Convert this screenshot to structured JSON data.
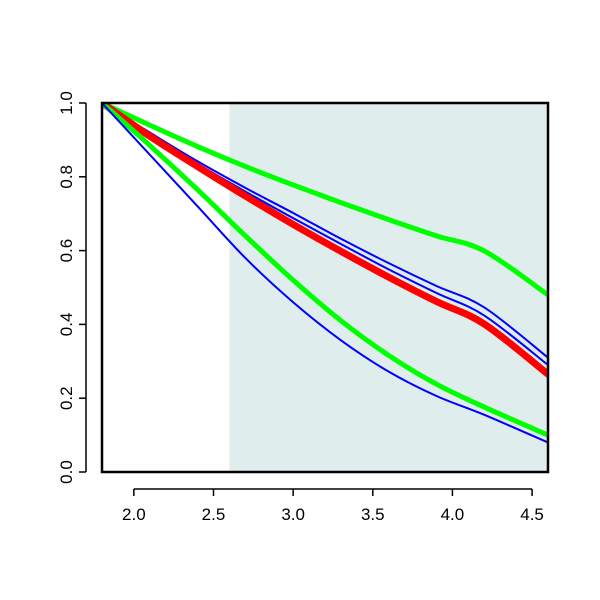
{
  "chart_data": {
    "type": "line",
    "title": "",
    "xlabel": "",
    "ylabel": "",
    "xlim": [
      1.8,
      4.6
    ],
    "ylim": [
      0.0,
      1.0
    ],
    "x_ticks": [
      "2.0",
      "2.5",
      "3.0",
      "3.5",
      "4.0",
      "4.5"
    ],
    "y_ticks": [
      "0.0",
      "0.2",
      "0.4",
      "0.6",
      "0.8",
      "1.0"
    ],
    "grid": false,
    "legend": "none",
    "shaded_region": {
      "x_start": 2.6,
      "x_end": 4.6,
      "color": "#e0eded"
    },
    "x": [
      1.8,
      2.1,
      2.4,
      2.7,
      3.0,
      3.3,
      3.6,
      3.9,
      4.2,
      4.6
    ],
    "series": [
      {
        "color": "#00ff00",
        "width": 5,
        "values": [
          1.0,
          0.94,
          0.882,
          0.828,
          0.778,
          0.73,
          0.684,
          0.64,
          0.599,
          0.48
        ]
      },
      {
        "color": "#0000ff",
        "width": 2,
        "values": [
          1.0,
          0.92,
          0.842,
          0.77,
          0.702,
          0.632,
          0.566,
          0.504,
          0.446,
          0.31
        ]
      },
      {
        "color": "#0000ff",
        "width": 2,
        "values": [
          1.0,
          0.915,
          0.835,
          0.76,
          0.688,
          0.618,
          0.549,
          0.485,
          0.424,
          0.29
        ]
      },
      {
        "color": "#ff0000",
        "width": 7,
        "values": [
          1.0,
          0.91,
          0.828,
          0.748,
          0.671,
          0.598,
          0.528,
          0.462,
          0.401,
          0.265
        ]
      },
      {
        "color": "#00ff00",
        "width": 5,
        "values": [
          1.0,
          0.885,
          0.765,
          0.64,
          0.52,
          0.41,
          0.316,
          0.238,
          0.176,
          0.1
        ]
      },
      {
        "color": "#0000ff",
        "width": 2,
        "values": [
          1.0,
          0.86,
          0.72,
          0.58,
          0.46,
          0.357,
          0.272,
          0.206,
          0.155,
          0.08
        ]
      }
    ]
  }
}
